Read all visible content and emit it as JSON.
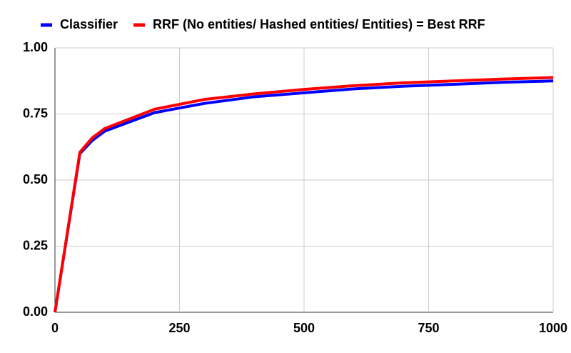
{
  "chart_data": {
    "type": "line",
    "x": [
      0,
      50,
      75,
      100,
      200,
      300,
      400,
      500,
      600,
      700,
      800,
      900,
      1000
    ],
    "series": [
      {
        "name": "Classifier",
        "color": "#0000ff",
        "values": [
          0,
          0.6,
          0.65,
          0.685,
          0.755,
          0.79,
          0.815,
          0.83,
          0.845,
          0.855,
          0.862,
          0.87,
          0.875
        ]
      },
      {
        "name": "RRF (No entities/ Hashed entities/ Entities) = Best RRF",
        "color": "#ff0000",
        "values": [
          0,
          0.605,
          0.66,
          0.695,
          0.768,
          0.805,
          0.826,
          0.843,
          0.857,
          0.868,
          0.875,
          0.882,
          0.888
        ]
      }
    ],
    "xlim": [
      0,
      1000
    ],
    "xticks": [
      0,
      250,
      500,
      750,
      1000
    ],
    "ylim": [
      0,
      1
    ],
    "yticks": [
      {
        "value": 0,
        "label": "0.00"
      },
      {
        "value": 0.25,
        "label": "0.25"
      },
      {
        "value": 0.5,
        "label": "0.50"
      },
      {
        "value": 0.75,
        "label": "0.75"
      },
      {
        "value": 1,
        "label": "1.00"
      }
    ],
    "grid": true,
    "legend": "top"
  }
}
